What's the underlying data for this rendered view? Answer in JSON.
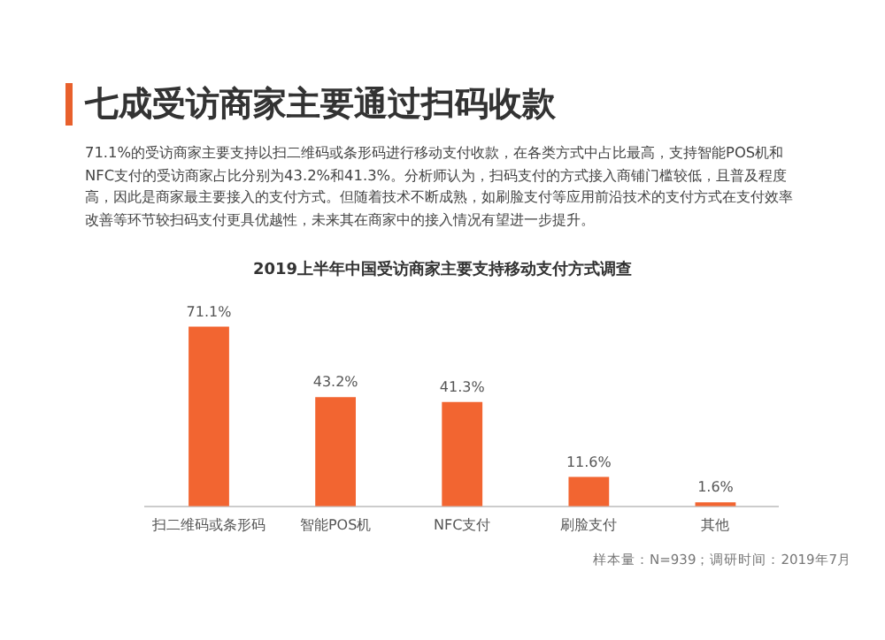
{
  "chart_data": {
    "type": "bar",
    "title": "七成受访商家主要通过扫码收款",
    "subtitle": "2019上半年中国受访商家主要支持移动支付方式调查",
    "annotations": [
      "71.1%的受访商家主要支持以扫二维码或条形码进行移动支付收款，在各类方式中占比最高，支持智能POS机和NFC支付的受访商家占比分别为43.2%和41.3%。分析师认为，扫码支付的方式接入商铺门槛较低，且普及程度高，因此是商家最主要接入的支付方式。但随着技术不断成熟，如刷脸支付等应用前沿技术的支付方式在支付效率改善等环节较扫码支付更具优越性，未来其在商家中的接入情况有望进一步提升。",
      "样本量：N=939；调研时间：2019年7月"
    ],
    "categories": [
      "扫二维码或条形码",
      "智能POS机",
      "NFC支付",
      "刷脸支付",
      "其他"
    ],
    "values": [
      71.1,
      43.2,
      41.3,
      11.6,
      1.6
    ],
    "value_labels": [
      "71.1%",
      "43.2%",
      "41.3%",
      "11.6%",
      "1.6%"
    ],
    "color": "#f26531",
    "grid": false,
    "legend": false
  }
}
